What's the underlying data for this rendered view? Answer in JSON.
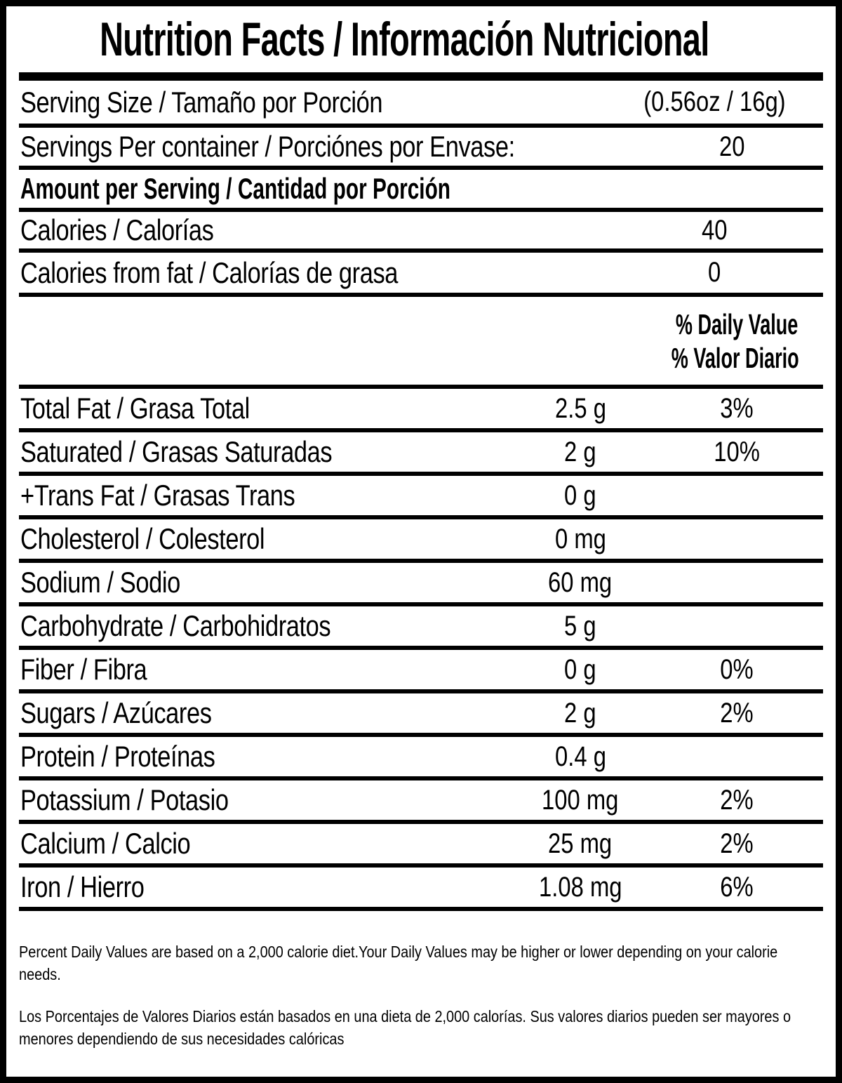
{
  "title": "Nutrition Facts / Información Nutricional",
  "serving": {
    "size_label": "Serving Size / Tamaño por Porción",
    "size_value": "(0.56oz / 16g)",
    "per_container_label": "Servings Per container / Porciónes por Envase:",
    "per_container_value": "20"
  },
  "amount_header": "Amount per Serving / Cantidad por Porción",
  "calories": {
    "label": "Calories / Calorías",
    "value": "40"
  },
  "calories_from_fat": {
    "label": "Calories from fat / Calorías de grasa",
    "value": "0"
  },
  "daily_value_header": {
    "line1": "% Daily Value",
    "line2": "% Valor Diario"
  },
  "nutrients": [
    {
      "label": "Total Fat / Grasa Total",
      "amount": "2.5 g",
      "dv": "3%"
    },
    {
      "label": "Saturated / Grasas Saturadas",
      "amount": "2 g",
      "dv": "10%"
    },
    {
      "label": "+Trans Fat / Grasas Trans",
      "amount": "0 g",
      "dv": ""
    },
    {
      "label": "Cholesterol / Colesterol",
      "amount": "0 mg",
      "dv": ""
    },
    {
      "label": "Sodium / Sodio",
      "amount": "60 mg",
      "dv": ""
    },
    {
      "label": "Carbohydrate / Carbohidratos",
      "amount": "5 g",
      "dv": ""
    },
    {
      "label": "Fiber / Fibra",
      "amount": "0 g",
      "dv": "0%"
    },
    {
      "label": "Sugars / Azúcares",
      "amount": "2 g",
      "dv": "2%"
    },
    {
      "label": "Protein / Proteínas",
      "amount": "0.4 g",
      "dv": ""
    },
    {
      "label": "Potassium / Potasio",
      "amount": "100 mg",
      "dv": "2%"
    },
    {
      "label": "Calcium / Calcio",
      "amount": "25 mg",
      "dv": "2%"
    },
    {
      "label": "Iron / Hierro",
      "amount": "1.08 mg",
      "dv": "6%"
    }
  ],
  "footnotes": {
    "en": "Percent Daily Values are based on a 2,000 calorie diet.Your Daily Values may be higher or lower depending on your calorie needs.",
    "es": "Los Porcentajes de Valores Diarios están basados en una dieta de 2,000 calorías. Sus valores diarios pueden ser mayores o menores dependiendo de sus necesidades calóricas"
  },
  "colors": {
    "text": "#000000",
    "background": "#ffffff"
  }
}
